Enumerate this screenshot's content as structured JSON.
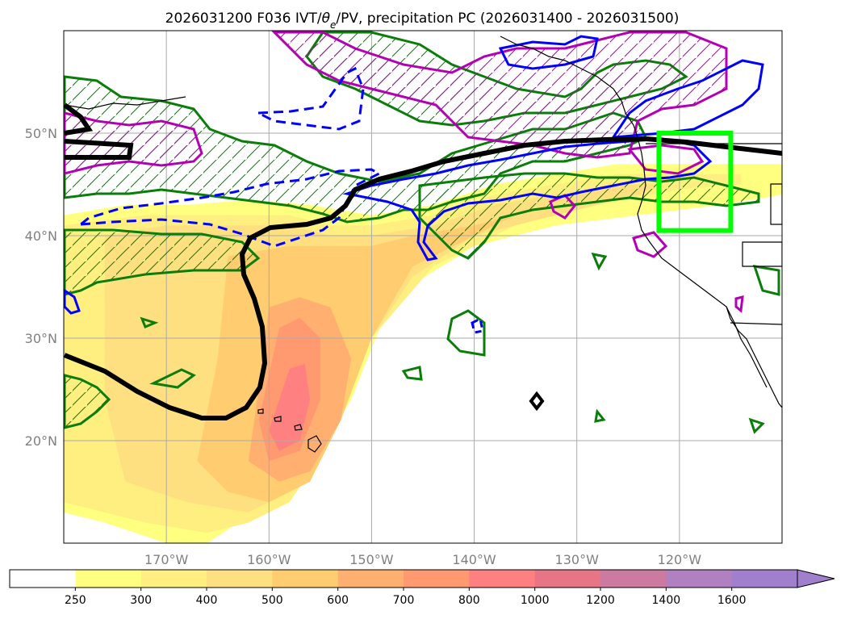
{
  "chart_data": {
    "type": "map",
    "title_parts": [
      "2026031200 F036 IVT/",
      "θ",
      "e",
      "/PV, precipitation PC (2026031400 - 2026031500)"
    ],
    "projection": "PlateCarree",
    "xlim": [
      -180,
      -110
    ],
    "ylim": [
      10,
      60
    ],
    "xticks": [
      {
        "lon": -170,
        "label": "170°W"
      },
      {
        "lon": -160,
        "label": "160°W"
      },
      {
        "lon": -150,
        "label": "150°W"
      },
      {
        "lon": -140,
        "label": "140°W"
      },
      {
        "lon": -130,
        "label": "130°W"
      },
      {
        "lon": -120,
        "label": "120°W"
      }
    ],
    "yticks": [
      {
        "lat": 20,
        "label": "20°N"
      },
      {
        "lat": 30,
        "label": "30°N"
      },
      {
        "lat": 40,
        "label": "40°N"
      },
      {
        "lat": 50,
        "label": "50°N"
      }
    ],
    "grid": true,
    "ivt_levels": [
      250,
      300,
      400,
      500,
      600,
      700,
      800,
      1000,
      1200,
      1400,
      1600
    ],
    "ivt_colors": [
      "#ffffff",
      "#ffff80",
      "#ffee80",
      "#ffe080",
      "#ffcc70",
      "#ffb070",
      "#ff9a70",
      "#ff8080",
      "#e87585",
      "#cc7aa0",
      "#b080c0",
      "#a080cc"
    ],
    "colorbar_extend": "max",
    "ivt_field": [
      {
        "value": 250,
        "lon": [
          -180,
          -174,
          -168,
          -162,
          -156,
          -150,
          -144,
          -138,
          -132,
          -126,
          -120,
          -114,
          -110,
          -110,
          -116,
          -124,
          -132,
          -140,
          -148,
          -152,
          -158,
          -163,
          -166,
          -170,
          -176,
          -180
        ],
        "lat": [
          42,
          43,
          43,
          43.5,
          43,
          42,
          43,
          45,
          46,
          47,
          47,
          47,
          47,
          44,
          43,
          42,
          41,
          39,
          34,
          24,
          14,
          12,
          10,
          10,
          12,
          13
        ]
      },
      {
        "value": 250,
        "lon": [
          -180,
          -175,
          -170,
          -165,
          -166,
          -172,
          -180
        ],
        "lat": [
          38,
          37,
          37,
          34,
          28,
          27,
          29
        ]
      },
      {
        "value": 300,
        "lon": [
          -180,
          -172,
          -164,
          -158,
          -154,
          -150,
          -144,
          -138,
          -132,
          -126,
          -120,
          -114,
          -114,
          -120,
          -128,
          -136,
          -144,
          -150,
          -154,
          -158,
          -162,
          -166,
          -172,
          -180
        ],
        "lat": [
          41,
          42,
          42,
          42,
          41,
          41,
          42,
          44,
          45,
          46,
          46,
          46,
          45,
          44.5,
          43,
          41,
          37,
          30,
          20,
          14,
          12,
          11,
          12,
          14
        ]
      },
      {
        "value": 400,
        "lon": [
          -176,
          -170,
          -164,
          -158,
          -154,
          -150,
          -144,
          -138,
          -132,
          -126,
          -122,
          -124,
          -132,
          -140,
          -146,
          -150,
          -154,
          -158,
          -162,
          -168,
          -174,
          -176
        ],
        "lat": [
          40,
          41,
          41,
          41,
          40,
          40,
          41,
          43,
          44,
          45,
          45,
          44,
          42,
          40,
          36,
          30,
          22,
          15,
          13,
          14,
          16,
          24
        ]
      },
      {
        "value": 500,
        "lon": [
          -164,
          -158,
          -154,
          -150,
          -146,
          -140,
          -136,
          -140,
          -146,
          -150,
          -153,
          -156,
          -160,
          -164,
          -167,
          -165
        ],
        "lat": [
          38,
          39,
          39,
          39,
          40,
          41,
          42,
          40,
          37,
          30,
          22,
          16,
          14,
          15,
          18,
          28
        ]
      },
      {
        "value": 600,
        "lon": [
          -160,
          -157,
          -154,
          -152,
          -153,
          -156,
          -159,
          -162,
          -161
        ],
        "lat": [
          33,
          34,
          33,
          28,
          22,
          17,
          16,
          18,
          25
        ]
      },
      {
        "value": 700,
        "lon": [
          -159,
          -157,
          -155,
          -155,
          -157,
          -160,
          -161
        ],
        "lat": [
          31,
          32,
          30,
          24,
          19,
          18,
          22
        ]
      },
      {
        "value": 800,
        "lon": [
          -158,
          -156.5,
          -156,
          -157,
          -159,
          -160
        ],
        "lat": [
          27,
          27.5,
          24,
          20,
          19,
          21
        ]
      }
    ],
    "contour_series": [
      {
        "name": "theta_e",
        "color": "#0a7d0a",
        "hatched": true
      },
      {
        "name": "pv_positive",
        "color": "#b400b4",
        "hatched": true
      },
      {
        "name": "pv_negative",
        "color": "#0000ff",
        "hatched": false
      },
      {
        "name": "ridge_axis",
        "color": "#000000",
        "hatched": false
      }
    ],
    "highlight_box": {
      "color": "#00ff00",
      "lon": [
        -122,
        -115
      ],
      "lat": [
        40.5,
        50
      ]
    }
  }
}
